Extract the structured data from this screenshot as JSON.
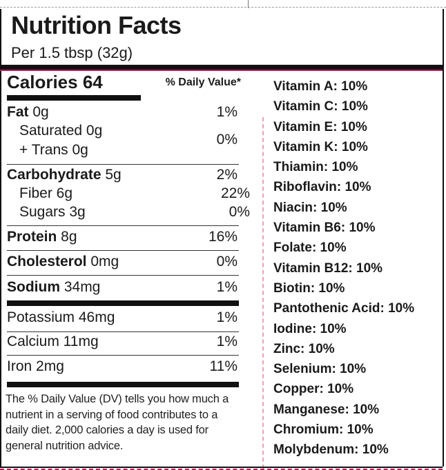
{
  "panel": {
    "title": "Nutrition Facts",
    "serving": "Per 1.5 tbsp (32g)",
    "calories_label": "Calories 64",
    "dv_header": "% Daily Value*"
  },
  "nutrients": {
    "fat": {
      "label": "Fat",
      "amount": " 0g",
      "dv": "1%"
    },
    "saturated": {
      "label": "Saturated 0g"
    },
    "trans": {
      "label": "+ Trans 0g"
    },
    "sat_trans_dv": "0%",
    "carbohydrate": {
      "label": "Carbohydrate",
      "amount": " 5g",
      "dv": "2%"
    },
    "fiber": {
      "label": "Fiber 6g",
      "dv": "22%"
    },
    "sugars": {
      "label": "Sugars 3g",
      "dv": "0%"
    },
    "protein": {
      "label": "Protein",
      "amount": " 8g",
      "dv": "16%"
    },
    "cholesterol": {
      "label": "Cholesterol",
      "amount": " 0mg",
      "dv": "0%"
    },
    "sodium": {
      "label": "Sodium",
      "amount": " 34mg",
      "dv": "1%"
    },
    "potassium": {
      "label": "Potassium 46mg",
      "dv": "1%"
    },
    "calcium": {
      "label": "Calcium 11mg",
      "dv": "1%"
    },
    "iron": {
      "label": "Iron 2mg",
      "dv": "11%"
    }
  },
  "footnote": "The % Daily Value (DV) tells you how much a nutrient in a serving of food contributes to a daily diet. 2,000 calories a day is used for general nutrition advice.",
  "vitamins": [
    "Vitamin A: 10%",
    "Vitamin C: 10%",
    "Vitamin E: 10%",
    "Vitamin K: 10%",
    "Thiamin: 10%",
    "Riboflavin: 10%",
    "Niacin: 10%",
    "Vitamin B6: 10%",
    "Folate: 10%",
    "Vitamin B12: 10%",
    "Biotin: 10%",
    "Pantothenic Acid: 10%",
    "Iodine: 10%",
    "Zinc: 10%",
    "Selenium: 10%",
    "Copper: 10%",
    "Manganese: 10%",
    "Chromium: 10%",
    "Molybdenum: 10%"
  ],
  "colors": {
    "rule": "#111111",
    "accent": "#c2185b",
    "accent_light": "#e6a4b4"
  }
}
